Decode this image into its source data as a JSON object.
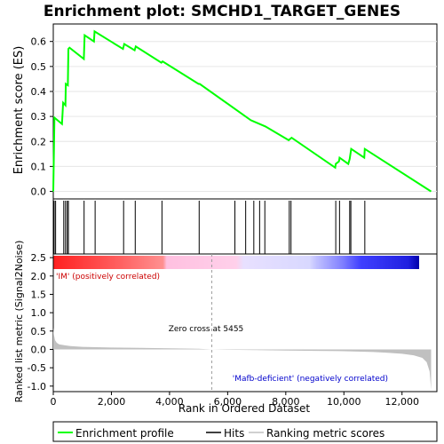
{
  "chart_data": {
    "type": "line",
    "title": "Enrichment plot: SMCHD1_TARGET_GENES",
    "colors": {
      "enrichment_line": "#00ff00",
      "hits": "#000000",
      "metric_fill": "#c0c0c0",
      "zero_line": "#808080",
      "pos_label": "#cc0000",
      "neg_label": "#0000cc",
      "heat_red": "#ff0000",
      "heat_pink": "#ffc0e0",
      "heat_lavender": "#d0d0ff",
      "heat_blue": "#0000ff"
    },
    "top_panel": {
      "ylabel": "Enrichment score (ES)",
      "ylim": [
        -0.03,
        0.67
      ],
      "yticks": [
        0.0,
        0.1,
        0.2,
        0.3,
        0.4,
        0.5,
        0.6
      ],
      "ytick_labels": [
        "0.0",
        "0.1",
        "0.2",
        "0.3",
        "0.4",
        "0.5",
        "0.6"
      ],
      "grid": true,
      "series": [
        {
          "name": "Enrichment profile",
          "x": [
            0,
            40,
            300,
            340,
            420,
            430,
            500,
            520,
            560,
            1050,
            1080,
            1400,
            1420,
            2400,
            2440,
            2800,
            2840,
            3720,
            3760,
            5000,
            5040,
            6800,
            6900,
            7300,
            8100,
            8150,
            8200,
            9700,
            9720,
            9830,
            9850,
            10150,
            10200,
            10250,
            10700,
            10720,
            13000
          ],
          "y": [
            0.0,
            0.295,
            0.27,
            0.355,
            0.345,
            0.43,
            0.425,
            0.57,
            0.575,
            0.53,
            0.625,
            0.6,
            0.64,
            0.57,
            0.59,
            0.565,
            0.58,
            0.515,
            0.52,
            0.43,
            0.43,
            0.285,
            0.28,
            0.26,
            0.205,
            0.21,
            0.215,
            0.095,
            0.11,
            0.12,
            0.135,
            0.11,
            0.13,
            0.17,
            0.135,
            0.17,
            0.0
          ]
        }
      ]
    },
    "hits": [
      30,
      80,
      360,
      420,
      480,
      520,
      1060,
      1440,
      2420,
      2820,
      3740,
      5020,
      6250,
      6620,
      6900,
      7100,
      7280,
      8120,
      8180,
      9720,
      9850,
      10200,
      10240,
      10720
    ],
    "bottom_panel": {
      "ylabel": "Ranked list metric (Signal2Noise)",
      "xlabel": "Rank in Ordered Dataset",
      "ylim": [
        -1.15,
        2.6
      ],
      "yticks": [
        -1.0,
        -0.5,
        0.0,
        0.5,
        1.0,
        1.5,
        2.0,
        2.5
      ],
      "ytick_labels": [
        "-1.0",
        "-0.5",
        "0.0",
        "0.5",
        "1.0",
        "1.5",
        "2.0",
        "2.5"
      ],
      "xlim": [
        0,
        13200
      ],
      "xticks": [
        0,
        2000,
        4000,
        6000,
        8000,
        10000,
        12000
      ],
      "xtick_labels": [
        "0",
        "2,000",
        "4,000",
        "6,000",
        "8,000",
        "10,000",
        "12,000"
      ],
      "metric_x": [
        0,
        20,
        60,
        120,
        200,
        400,
        600,
        1000,
        2000,
        3000,
        4000,
        5000,
        5455,
        6000,
        7000,
        8000,
        9000,
        10000,
        11000,
        11500,
        12000,
        12400,
        12700,
        12850,
        12950,
        13000
      ],
      "metric_y": [
        0.6,
        0.4,
        0.25,
        0.18,
        0.14,
        0.11,
        0.09,
        0.07,
        0.05,
        0.04,
        0.03,
        0.015,
        0.0,
        -0.01,
        -0.02,
        -0.03,
        -0.04,
        -0.05,
        -0.07,
        -0.09,
        -0.12,
        -0.16,
        -0.23,
        -0.35,
        -0.6,
        -1.1
      ],
      "zero_cross_label": "Zero cross at 5455",
      "zero_cross": 5455,
      "pos_label": "'IM' (positively correlated)",
      "neg_label": "'Mafb-deficient' (negatively correlated)"
    },
    "legend": {
      "placement": "bottom",
      "entries": [
        "Enrichment profile",
        "Hits",
        "Ranking metric scores"
      ]
    }
  }
}
